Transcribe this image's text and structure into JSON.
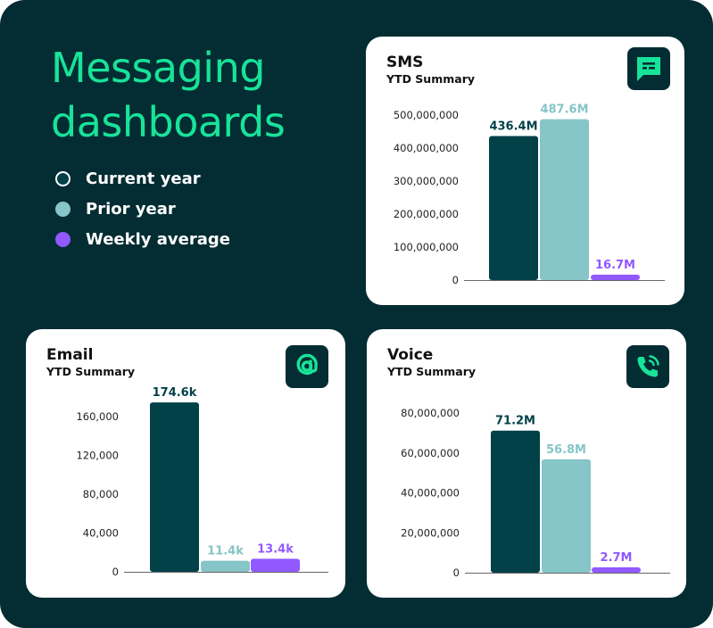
{
  "headline": "Messaging dashboards",
  "legend": [
    {
      "label": "Current year",
      "color": "#034149",
      "dot_border": "#ffffff"
    },
    {
      "label": "Prior year",
      "color": "#86c5c8",
      "dot_border": "#86c5c8"
    },
    {
      "label": "Weekly average",
      "color": "#9159ff",
      "dot_border": "#9159ff"
    }
  ],
  "colors": {
    "background": "#032d33",
    "accent": "#18e399",
    "current": "#034149",
    "prior": "#86c5c8",
    "average": "#9159ff"
  },
  "cards": {
    "sms": {
      "title": "SMS",
      "subtitle": "YTD Summary",
      "icon": "message-icon"
    },
    "email": {
      "title": "Email",
      "subtitle": "YTD Summary",
      "icon": "at-sign-icon"
    },
    "voice": {
      "title": "Voice",
      "subtitle": "YTD Summary",
      "icon": "phone-ringing-icon"
    }
  },
  "chart_data": [
    {
      "type": "bar",
      "title": "SMS",
      "subtitle": "YTD Summary",
      "categories": [
        "Current year",
        "Prior year",
        "Weekly average"
      ],
      "values": [
        436400000,
        487600000,
        16700000
      ],
      "data_labels": [
        "436.4M",
        "487.6M",
        "16.7M"
      ],
      "ylim": [
        0,
        500000000
      ],
      "yticks": [
        0,
        100000000,
        200000000,
        300000000,
        400000000,
        500000000
      ],
      "ytick_labels": [
        "0",
        "100,000,000",
        "200,000,000",
        "300,000,000",
        "400,000,000",
        "500,000,000"
      ],
      "grid": false
    },
    {
      "type": "bar",
      "title": "Email",
      "subtitle": "YTD Summary",
      "categories": [
        "Current year",
        "Prior year",
        "Weekly average"
      ],
      "values": [
        174600,
        11400,
        13400
      ],
      "data_labels": [
        "174.6k",
        "11.4k",
        "13.4k"
      ],
      "ylim": [
        0,
        160000
      ],
      "yticks": [
        0,
        40000,
        80000,
        120000,
        160000
      ],
      "ytick_labels": [
        "0",
        "40,000",
        "80,000",
        "120,000",
        "160,000"
      ],
      "grid": false
    },
    {
      "type": "bar",
      "title": "Voice",
      "subtitle": "YTD Summary",
      "categories": [
        "Current year",
        "Prior year",
        "Weekly average"
      ],
      "values": [
        71200000,
        56800000,
        2700000
      ],
      "data_labels": [
        "71.2M",
        "56.8M",
        "2.7M"
      ],
      "ylim": [
        0,
        80000000
      ],
      "yticks": [
        0,
        20000000,
        40000000,
        60000000,
        80000000
      ],
      "ytick_labels": [
        "0",
        "20,000,000",
        "40,000,000",
        "60,000,000",
        "80,000,000"
      ],
      "grid": false
    }
  ]
}
